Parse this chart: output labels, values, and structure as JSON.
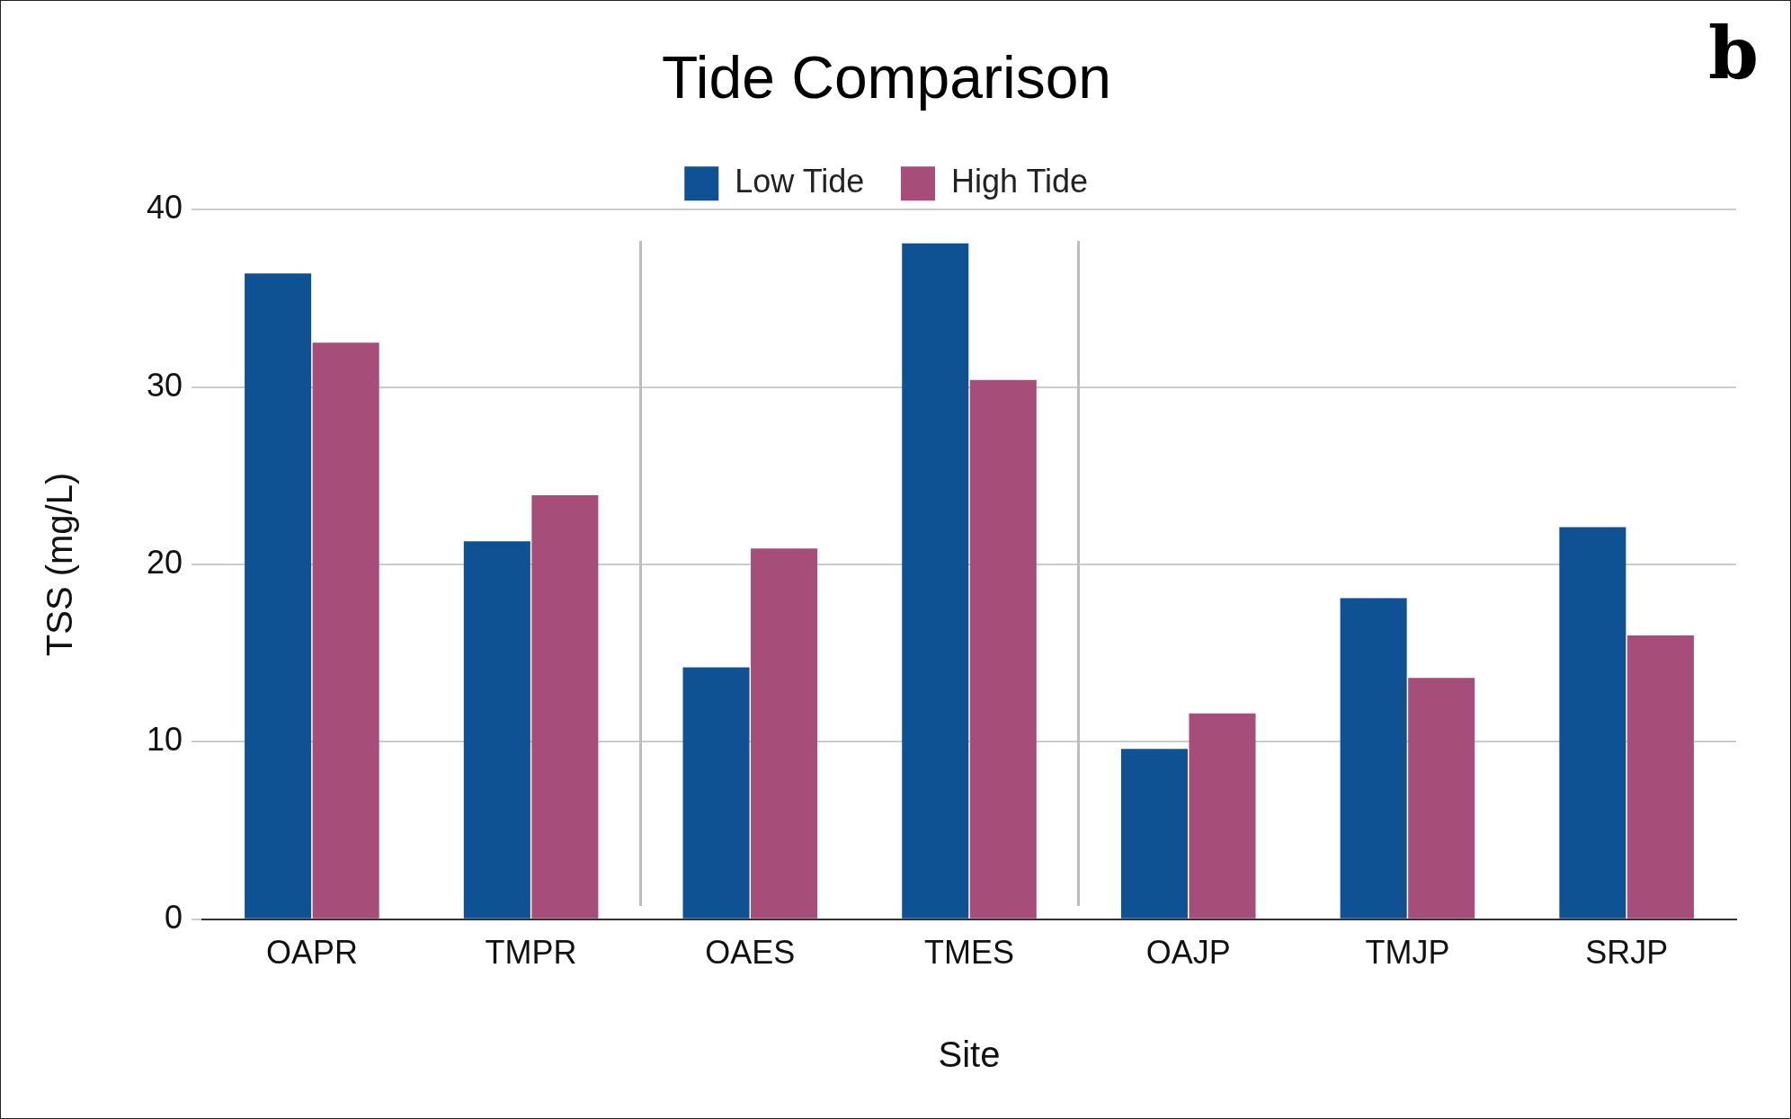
{
  "chart_data": {
    "type": "bar",
    "title": "Tide Comparison",
    "xlabel": "Site",
    "ylabel": "TSS (mg/L)",
    "categories": [
      "OAPR",
      "TMPR",
      "OAES",
      "TMES",
      "OAJP",
      "TMJP",
      "SRJP"
    ],
    "series": [
      {
        "name": "Low Tide",
        "color": "#0f5294",
        "values": [
          36.4,
          21.3,
          14.2,
          38.1,
          9.6,
          18.1,
          22.1
        ]
      },
      {
        "name": "High Tide",
        "color": "#a64d79",
        "values": [
          32.5,
          23.9,
          20.9,
          30.4,
          11.6,
          13.6,
          16.0
        ]
      }
    ],
    "ylim": [
      0,
      40
    ],
    "yticks": [
      0,
      10,
      20,
      30,
      40
    ],
    "grid": "y",
    "legend": "top",
    "annotations": [
      "b"
    ]
  }
}
